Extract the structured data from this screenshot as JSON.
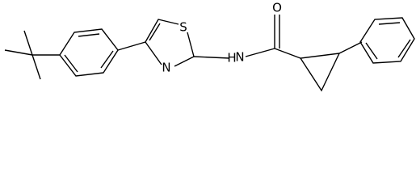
{
  "atoms": {
    "s": "S",
    "n_ring": "N",
    "n_amide": "N",
    "h_amide": "H",
    "o": "O"
  }
}
